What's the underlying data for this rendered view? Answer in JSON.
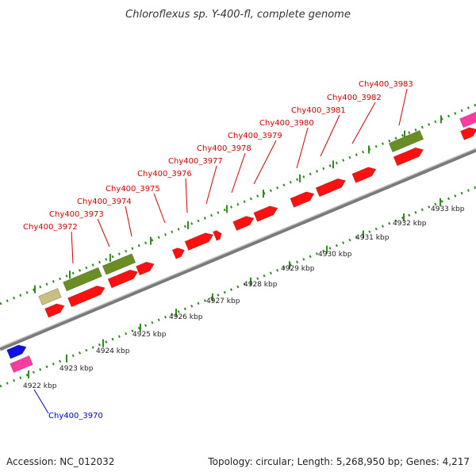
{
  "title": "Chloroflexus sp. Y-400-fl, complete genome",
  "footer": {
    "accession": "Accession: NC_012032",
    "summary": "Topology: circular; Length: 5,268,950 bp; Genes: 4,217"
  },
  "colors": {
    "backbone": "#8a8a8a",
    "tick": "#2f8a1f",
    "forward_gene": "#ff1010",
    "reverse_gene": "#ff1010",
    "rna_gene": "#6b8e23",
    "pseudo_gene": "#c8c080",
    "blue_gene": "#1010e0",
    "pink_gene": "#ff3aa0",
    "upper_label": "#cc0000",
    "lower_label": "#0000cc"
  },
  "scale_labels": [
    "4922 kbp",
    "4923 kbp",
    "4924 kbp",
    "4925 kbp",
    "4926 kbp",
    "4927 kbp",
    "4928 kbp",
    "4929 kbp",
    "4930 kbp",
    "4931 kbp",
    "4932 kbp",
    "4933 kbp"
  ],
  "gene_labels_top": [
    "Chy400_3972",
    "Chy400_3973",
    "Chy400_3974",
    "Chy400_3975",
    "Chy400_3976",
    "Chy400_3977",
    "Chy400_3978",
    "Chy400_3979",
    "Chy400_3980",
    "Chy400_3981",
    "Chy400_3982",
    "Chy400_3983"
  ],
  "gene_labels_bottom": [
    "Chy400_3970"
  ]
}
